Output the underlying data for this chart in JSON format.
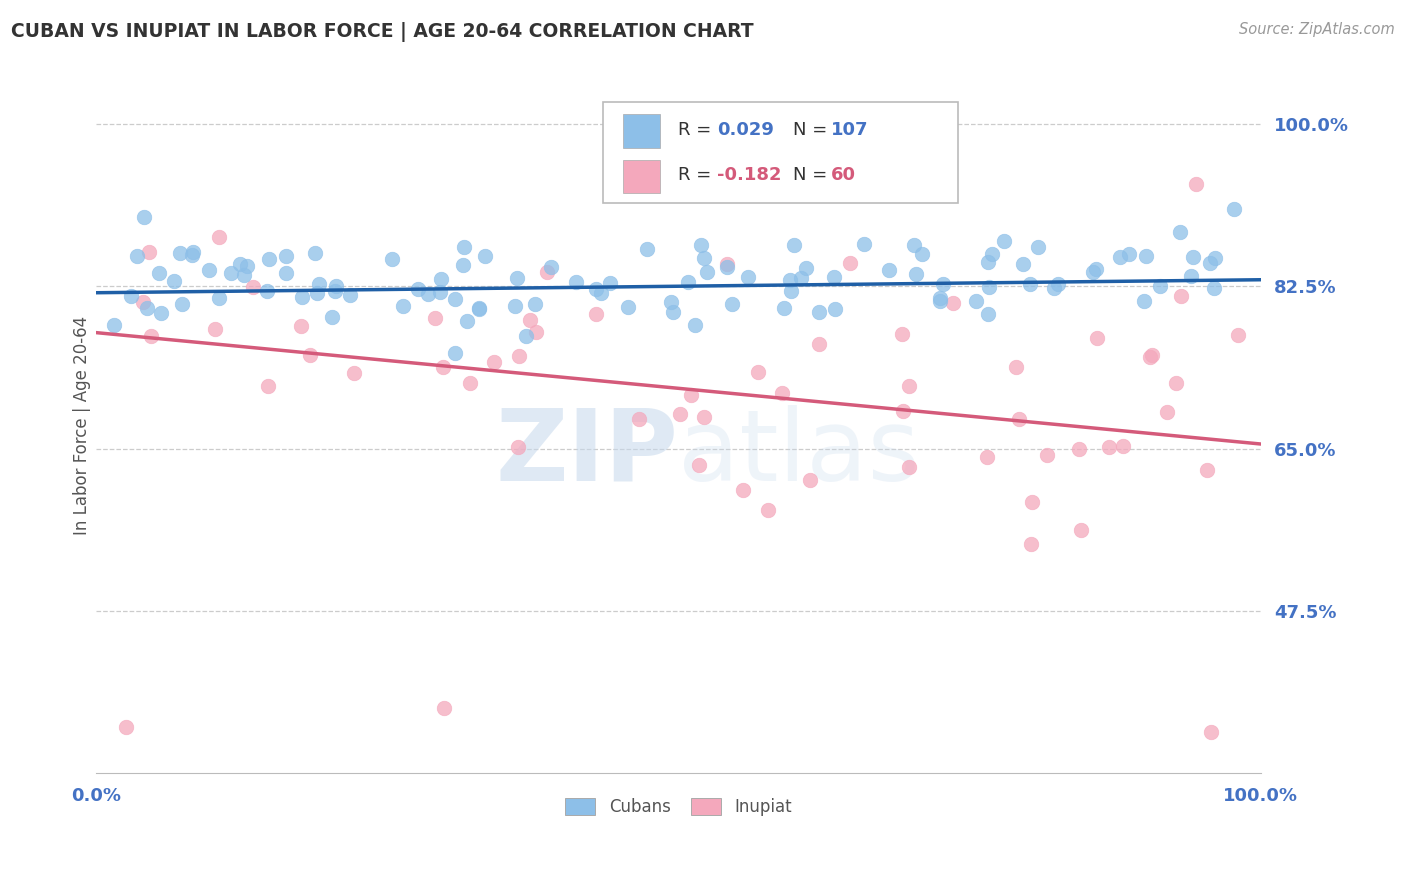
{
  "title": "CUBAN VS INUPIAT IN LABOR FORCE | AGE 20-64 CORRELATION CHART",
  "source_text": "Source: ZipAtlas.com",
  "ylabel": "In Labor Force | Age 20-64",
  "xlim": [
    0.0,
    1.0
  ],
  "ylim": [
    0.3,
    1.05
  ],
  "yticks": [
    0.475,
    0.65,
    0.825,
    1.0
  ],
  "ytick_labels": [
    "47.5%",
    "65.0%",
    "82.5%",
    "100.0%"
  ],
  "xtick_labels": [
    "0.0%",
    "100.0%"
  ],
  "xticks": [
    0.0,
    1.0
  ],
  "blue_R": 0.029,
  "blue_N": 107,
  "pink_R": -0.182,
  "pink_N": 60,
  "blue_color": "#8dbfe8",
  "pink_color": "#f4a8bc",
  "blue_line_color": "#1f5fa6",
  "pink_line_color": "#d45a7a",
  "axis_label_color": "#4472c4",
  "legend_label_1": "Cubans",
  "legend_label_2": "Inupiat",
  "grid_color": "#cccccc",
  "background_color": "#ffffff",
  "watermark_color": "#c5d8ec",
  "blue_trend_y0": 0.818,
  "blue_trend_y1": 0.832,
  "pink_trend_y0": 0.775,
  "pink_trend_y1": 0.655
}
